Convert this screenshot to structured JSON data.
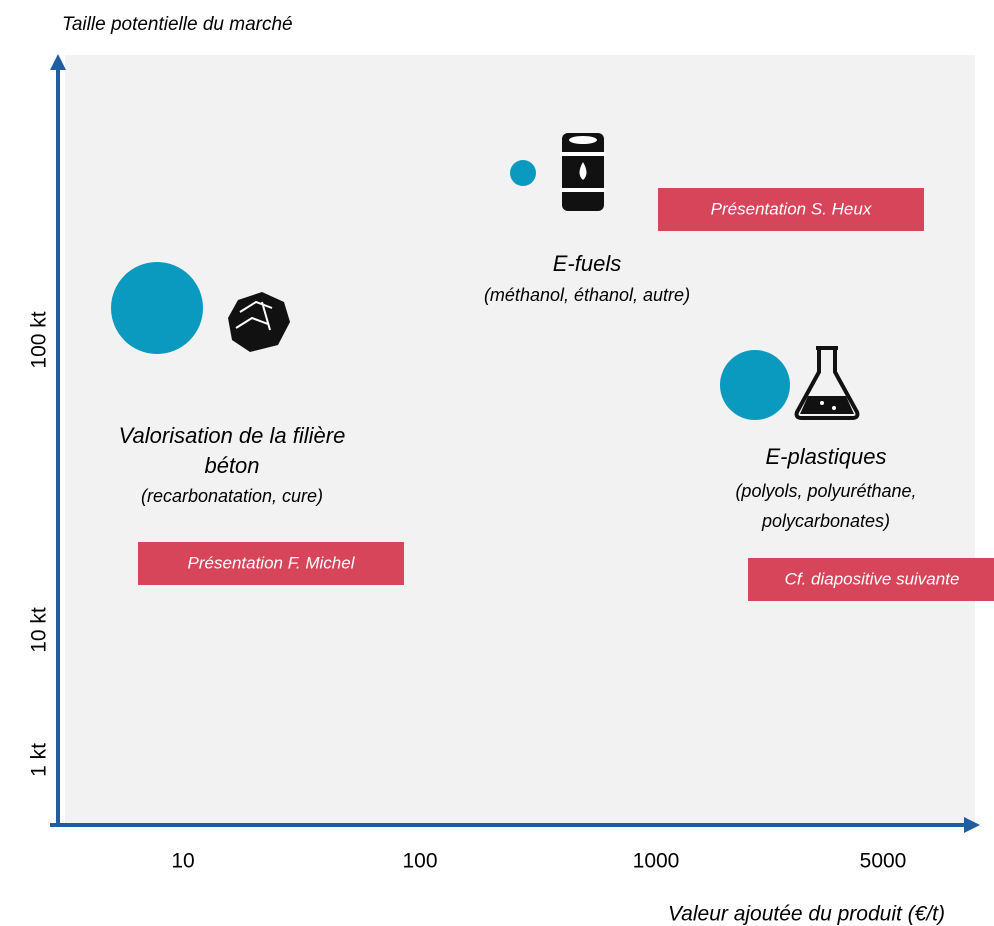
{
  "axes": {
    "y_title": "Taille potentielle du marché",
    "x_title": "Valeur ajoutée du produit (€/t)",
    "y_ticks": [
      "100 kt",
      "10 kt",
      "1 kt"
    ],
    "x_ticks": [
      "10",
      "100",
      "1000",
      "5000"
    ]
  },
  "groups": [
    {
      "title": [
        "Valorisation de la filière",
        "béton"
      ],
      "subtitle": [
        "(recarbonatation, cure)"
      ],
      "callout": "Présentation F. Michel"
    },
    {
      "title": [
        "E-fuels"
      ],
      "subtitle": [
        "(méthanol, éthanol, autre)"
      ],
      "callout": "Présentation S. Heux"
    },
    {
      "title": [
        "E-plastiques"
      ],
      "subtitle": [
        "(polyols, polyuréthane,",
        "polycarbonates)"
      ],
      "callout": "Cf. diapositive suivante"
    }
  ]
}
